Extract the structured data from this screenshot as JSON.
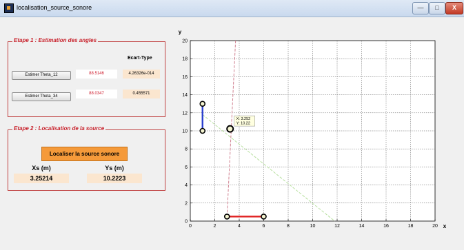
{
  "window": {
    "title": "localisation_source_sonore",
    "min_symbol": "—",
    "max_symbol": "□",
    "close_symbol": "X"
  },
  "etape1": {
    "title": "Etape 1 : Estimation des angles",
    "ecart_header": "Ecart-Type",
    "row1": {
      "button": "Estimer Theta_12",
      "value": "88.5146",
      "ecart": "4.26326e-014"
    },
    "row2": {
      "button": "Estimer Theta_34",
      "value": "88.0347",
      "ecart": "0.455571"
    }
  },
  "etape2": {
    "title": "Etape 2 : Localisation de la source",
    "button": "Localiser la source sonore",
    "xs_label": "Xs (m)",
    "ys_label": "Ys (m)",
    "xs_value": "3.25214",
    "ys_value": "10.2223"
  },
  "chart_data": {
    "type": "line",
    "xlabel": "x",
    "ylabel": "y",
    "xlim": [
      0,
      20
    ],
    "ylim": [
      0,
      20
    ],
    "grid": true,
    "xticks": [
      0,
      2,
      4,
      6,
      8,
      10,
      12,
      14,
      16,
      18,
      20
    ],
    "yticks": [
      0,
      2,
      4,
      6,
      8,
      10,
      12,
      14,
      16,
      18,
      20
    ],
    "segments": [
      {
        "label": "mic-pair-blue",
        "color": "#2a3fcf",
        "x": [
          1,
          1
        ],
        "y": [
          10,
          13
        ]
      },
      {
        "label": "mic-pair-red",
        "color": "#e02020",
        "x": [
          3,
          6
        ],
        "y": [
          0.5,
          0.5
        ]
      }
    ],
    "bearings": [
      {
        "label": "bearing-pink",
        "color": "#d08090",
        "x": [
          3,
          3.7
        ],
        "y": [
          0.5,
          20
        ]
      },
      {
        "label": "bearing-green",
        "color": "#b8e0a0",
        "x": [
          1,
          11.8
        ],
        "y": [
          11.8,
          0
        ]
      }
    ],
    "source_point": {
      "x": 3.252,
      "y": 10.22
    },
    "datatip": {
      "line1": "X: 3.252",
      "line2": "Y: 10.22"
    }
  }
}
